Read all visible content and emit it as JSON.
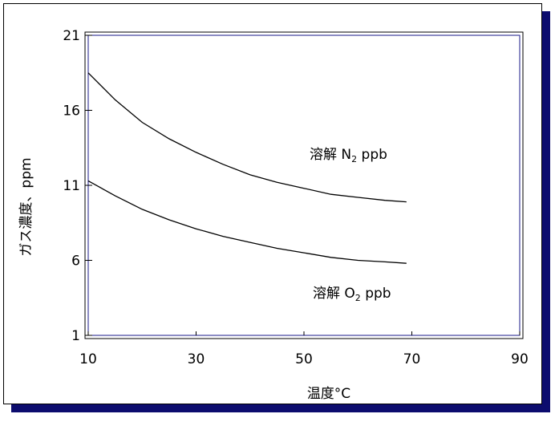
{
  "chart_data": {
    "type": "line",
    "xlabel": "温度°C",
    "ylabel": "ガス濃度、ppm",
    "xlim": [
      10,
      90
    ],
    "ylim": [
      1,
      21
    ],
    "xticks": [
      10,
      30,
      50,
      70,
      90
    ],
    "yticks": [
      1,
      6,
      11,
      16,
      21
    ],
    "series": [
      {
        "name": "溶解 N₂ ppb",
        "x": [
          10,
          15,
          20,
          25,
          30,
          35,
          40,
          45,
          50,
          55,
          60,
          65,
          69
        ],
        "y": [
          18.5,
          16.7,
          15.2,
          14.1,
          13.2,
          12.4,
          11.7,
          11.2,
          10.8,
          10.4,
          10.2,
          10.0,
          9.9
        ]
      },
      {
        "name": "溶解 O₂ ppb",
        "x": [
          10,
          15,
          20,
          25,
          30,
          35,
          40,
          45,
          50,
          55,
          60,
          65,
          69
        ],
        "y": [
          11.3,
          10.3,
          9.4,
          8.7,
          8.1,
          7.6,
          7.2,
          6.8,
          6.5,
          6.2,
          6.0,
          5.9,
          5.8
        ]
      }
    ]
  },
  "colors": {
    "frame_shadow": "#0c0c6e",
    "axes_inner_border": "#1a1a8a",
    "lines": "#000000"
  }
}
